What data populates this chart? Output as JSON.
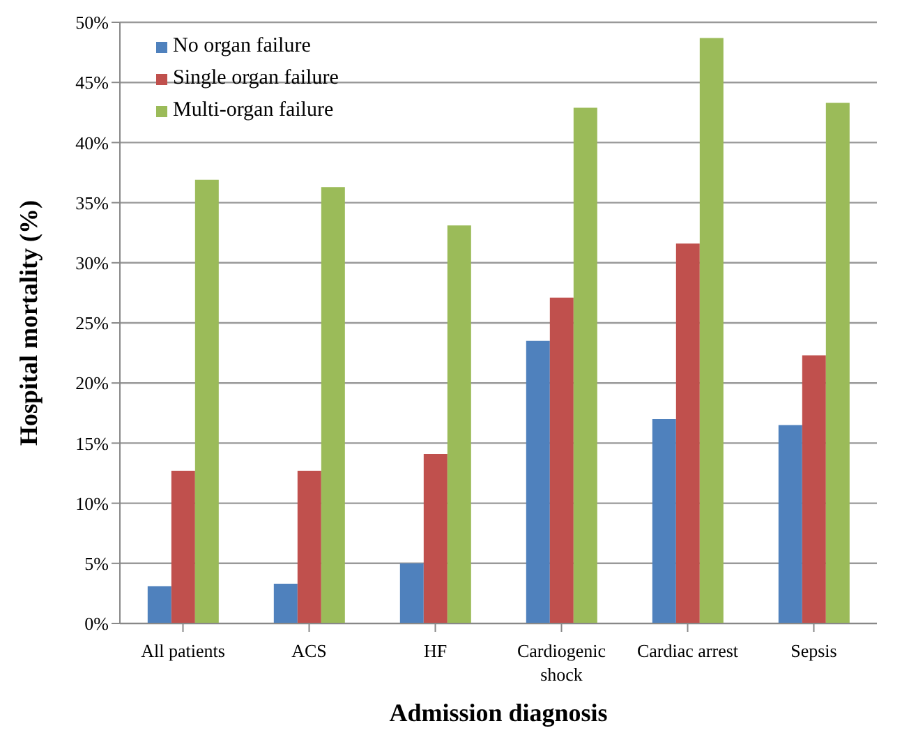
{
  "chart_data": {
    "type": "bar",
    "xlabel": "Admission diagnosis",
    "ylabel": "Hospital mortality (%)",
    "categories": [
      "All patients",
      "ACS",
      "HF",
      "Cardiogenic shock",
      "Cardiac arrest",
      "Sepsis"
    ],
    "series": [
      {
        "name": "No organ failure",
        "color": "#4f81bd",
        "values": [
          3.1,
          3.3,
          5.0,
          23.5,
          17.0,
          16.5
        ]
      },
      {
        "name": "Single organ failure",
        "color": "#c0504d",
        "values": [
          12.7,
          12.7,
          14.1,
          27.1,
          31.6,
          22.3
        ]
      },
      {
        "name": "Multi-organ failure",
        "color": "#9bbb59",
        "values": [
          36.9,
          36.3,
          33.1,
          42.9,
          48.7,
          43.3
        ]
      }
    ],
    "ylim": [
      0,
      50
    ],
    "yticks": [
      {
        "value": 0,
        "label": "0%"
      },
      {
        "value": 5,
        "label": "5%"
      },
      {
        "value": 10,
        "label": "10%"
      },
      {
        "value": 15,
        "label": "15%"
      },
      {
        "value": 20,
        "label": "20%"
      },
      {
        "value": 25,
        "label": "25%"
      },
      {
        "value": 30,
        "label": "30%"
      },
      {
        "value": 35,
        "label": "35%"
      },
      {
        "value": 40,
        "label": "40%"
      },
      {
        "value": 45,
        "label": "45%"
      },
      {
        "value": 50,
        "label": "50%"
      }
    ],
    "grid": "y",
    "legend": "top left"
  }
}
